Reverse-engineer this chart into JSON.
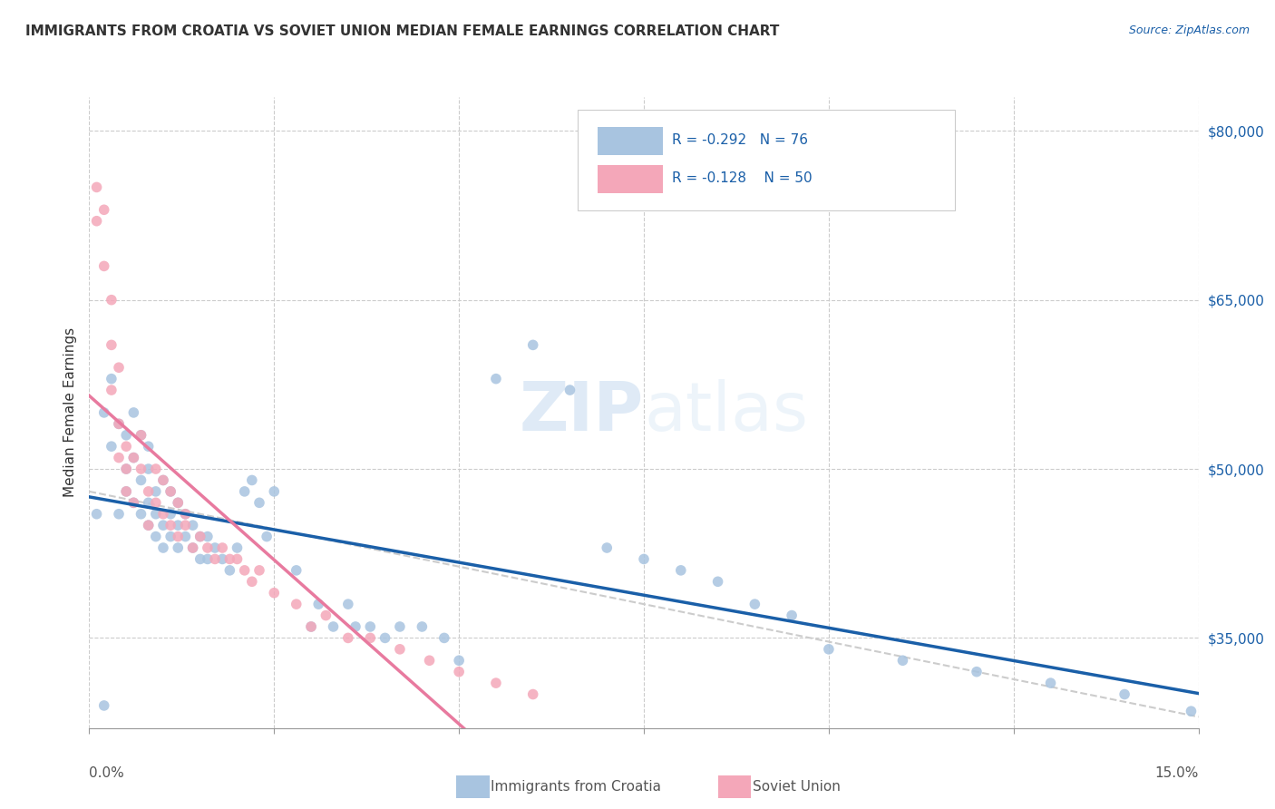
{
  "title": "IMMIGRANTS FROM CROATIA VS SOVIET UNION MEDIAN FEMALE EARNINGS CORRELATION CHART",
  "source": "Source: ZipAtlas.com",
  "ylabel": "Median Female Earnings",
  "xlim": [
    0.0,
    0.15
  ],
  "ylim": [
    27000,
    83000
  ],
  "croatia_color": "#a8c4e0",
  "soviet_color": "#f4a7b9",
  "croatia_line_color": "#1a5fa8",
  "soviet_line_color": "#e87a9f",
  "watermark_zip": "ZIP",
  "watermark_atlas": "atlas",
  "legend_r_croatia": "R = -0.292",
  "legend_n_croatia": "N = 76",
  "legend_r_soviet": "R = -0.128",
  "legend_n_soviet": "N = 50",
  "croatia_scatter_x": [
    0.001,
    0.002,
    0.003,
    0.003,
    0.004,
    0.004,
    0.005,
    0.005,
    0.005,
    0.006,
    0.006,
    0.006,
    0.007,
    0.007,
    0.007,
    0.008,
    0.008,
    0.008,
    0.008,
    0.009,
    0.009,
    0.009,
    0.01,
    0.01,
    0.01,
    0.011,
    0.011,
    0.011,
    0.012,
    0.012,
    0.012,
    0.013,
    0.013,
    0.014,
    0.014,
    0.015,
    0.015,
    0.016,
    0.016,
    0.017,
    0.018,
    0.019,
    0.02,
    0.021,
    0.022,
    0.023,
    0.024,
    0.025,
    0.028,
    0.03,
    0.031,
    0.033,
    0.035,
    0.036,
    0.038,
    0.04,
    0.042,
    0.045,
    0.048,
    0.05,
    0.055,
    0.06,
    0.065,
    0.07,
    0.075,
    0.08,
    0.085,
    0.09,
    0.095,
    0.1,
    0.11,
    0.12,
    0.13,
    0.14,
    0.149,
    0.002
  ],
  "croatia_scatter_y": [
    46000,
    55000,
    52000,
    58000,
    46000,
    54000,
    50000,
    53000,
    48000,
    47000,
    51000,
    55000,
    46000,
    49000,
    53000,
    45000,
    47000,
    50000,
    52000,
    44000,
    46000,
    48000,
    43000,
    45000,
    49000,
    44000,
    46000,
    48000,
    43000,
    45000,
    47000,
    44000,
    46000,
    43000,
    45000,
    42000,
    44000,
    42000,
    44000,
    43000,
    42000,
    41000,
    43000,
    48000,
    49000,
    47000,
    44000,
    48000,
    41000,
    36000,
    38000,
    36000,
    38000,
    36000,
    36000,
    35000,
    36000,
    36000,
    35000,
    33000,
    58000,
    61000,
    57000,
    43000,
    42000,
    41000,
    40000,
    38000,
    37000,
    34000,
    33000,
    32000,
    31000,
    30000,
    28500,
    29000
  ],
  "soviet_scatter_x": [
    0.001,
    0.001,
    0.002,
    0.002,
    0.003,
    0.003,
    0.003,
    0.004,
    0.004,
    0.004,
    0.005,
    0.005,
    0.005,
    0.006,
    0.006,
    0.007,
    0.007,
    0.008,
    0.008,
    0.009,
    0.009,
    0.01,
    0.01,
    0.011,
    0.011,
    0.012,
    0.012,
    0.013,
    0.013,
    0.014,
    0.015,
    0.016,
    0.017,
    0.018,
    0.019,
    0.02,
    0.021,
    0.022,
    0.023,
    0.025,
    0.028,
    0.03,
    0.032,
    0.035,
    0.038,
    0.042,
    0.046,
    0.05,
    0.055,
    0.06
  ],
  "soviet_scatter_y": [
    75000,
    72000,
    73000,
    68000,
    61000,
    65000,
    57000,
    59000,
    54000,
    51000,
    52000,
    50000,
    48000,
    51000,
    47000,
    50000,
    53000,
    48000,
    45000,
    47000,
    50000,
    46000,
    49000,
    45000,
    48000,
    44000,
    47000,
    45000,
    46000,
    43000,
    44000,
    43000,
    42000,
    43000,
    42000,
    42000,
    41000,
    40000,
    41000,
    39000,
    38000,
    36000,
    37000,
    35000,
    35000,
    34000,
    33000,
    32000,
    31000,
    30000
  ],
  "background_color": "#ffffff",
  "grid_color": "#cccccc"
}
